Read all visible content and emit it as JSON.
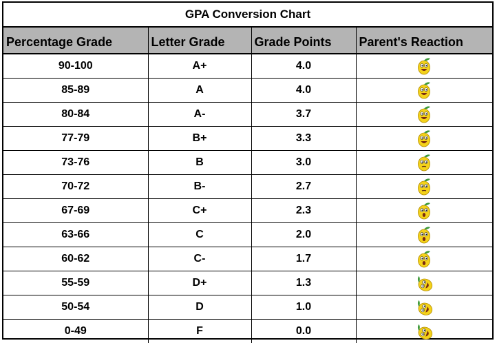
{
  "chart": {
    "title": "GPA Conversion Chart",
    "headers": [
      "Percentage Grade",
      "Letter Grade",
      "Grade Points",
      "Parent's Reaction"
    ],
    "rows": [
      {
        "percent": "90-100",
        "letter": "A+",
        "points": "4.0",
        "reaction": "ecstatic-lemon-face-icon"
      },
      {
        "percent": "85-89",
        "letter": "A",
        "points": "4.0",
        "reaction": "happy-lemon-face-icon"
      },
      {
        "percent": "80-84",
        "letter": "A-",
        "points": "3.7",
        "reaction": "happy-lemon-face-icon"
      },
      {
        "percent": "77-79",
        "letter": "B+",
        "points": "3.3",
        "reaction": "content-lemon-face-icon"
      },
      {
        "percent": "73-76",
        "letter": "B",
        "points": "3.0",
        "reaction": "neutral-lemon-face-icon"
      },
      {
        "percent": "70-72",
        "letter": "B-",
        "points": "2.7",
        "reaction": "doubtful-lemon-face-icon"
      },
      {
        "percent": "67-69",
        "letter": "C+",
        "points": "2.3",
        "reaction": "surprised-lemon-face-icon"
      },
      {
        "percent": "63-66",
        "letter": "C",
        "points": "2.0",
        "reaction": "shocked-lemon-face-icon"
      },
      {
        "percent": "60-62",
        "letter": "C-",
        "points": "1.7",
        "reaction": "shocked-lemon-face-icon"
      },
      {
        "percent": "55-59",
        "letter": "D+",
        "points": "1.3",
        "reaction": "fallen-lemon-face-icon"
      },
      {
        "percent": "50-54",
        "letter": "D",
        "points": "1.0",
        "reaction": "fallen-lemon-face-icon"
      },
      {
        "percent": "0-49",
        "letter": "F",
        "points": "0.0",
        "reaction": "collapsed-lemon-face-icon"
      }
    ]
  },
  "colors": {
    "header_bg": "#b4b4b4",
    "lemon": "#f4d21a",
    "leaf": "#3f9a3a"
  }
}
